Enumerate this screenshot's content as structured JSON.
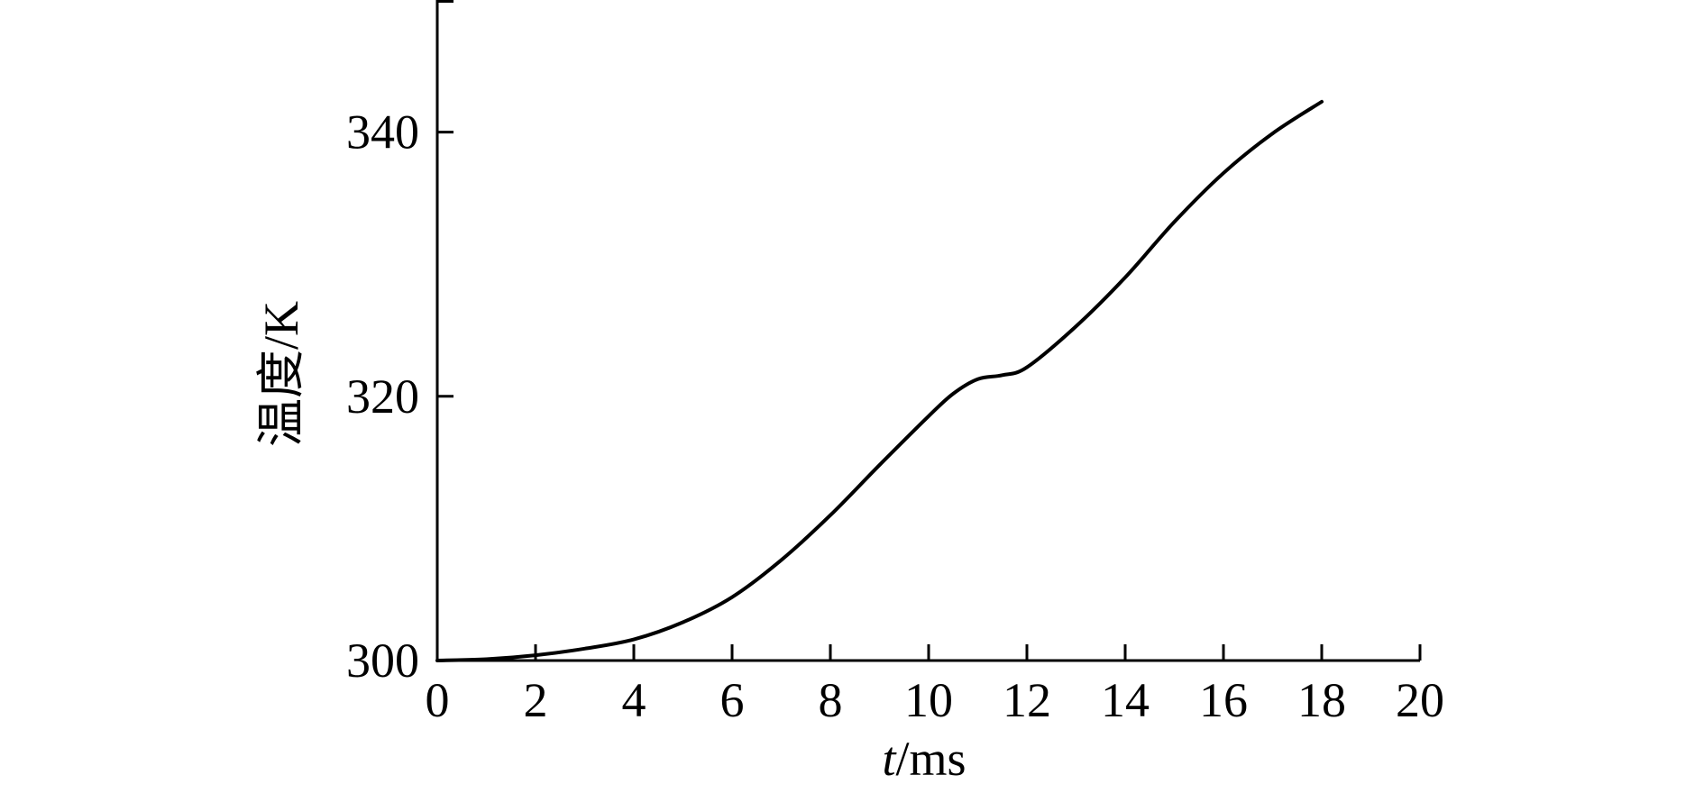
{
  "chart_data": {
    "type": "line",
    "title": "",
    "xlabel": "t/ms",
    "xlabel_italic_part": "t",
    "xlabel_rest": "/ms",
    "ylabel": "温度/K",
    "xlim": [
      0,
      20
    ],
    "ylim": [
      300,
      350
    ],
    "xticks": [
      0,
      2,
      4,
      6,
      8,
      10,
      12,
      14,
      16,
      18,
      20
    ],
    "xtick_labels": [
      "0",
      "2",
      "4",
      "6",
      "8",
      "10",
      "12",
      "14",
      "16",
      "18",
      "20"
    ],
    "yticks": [
      300,
      320,
      340
    ],
    "ytick_labels": [
      "300",
      "320",
      "340"
    ],
    "grid": false,
    "legend": "none",
    "line_color": "#000000",
    "series": [
      {
        "x": [
          0,
          1,
          2,
          3,
          4,
          5,
          6,
          7,
          8,
          9,
          10,
          10.5,
          11,
          11.5,
          12,
          13,
          14,
          15,
          16,
          17,
          18
        ],
        "y": [
          300,
          300.1,
          300.4,
          300.9,
          301.6,
          302.9,
          304.8,
          307.6,
          311.0,
          314.8,
          318.5,
          320.2,
          321.3,
          321.6,
          322.2,
          325.3,
          329.0,
          333.2,
          336.9,
          339.9,
          342.3
        ]
      }
    ]
  }
}
